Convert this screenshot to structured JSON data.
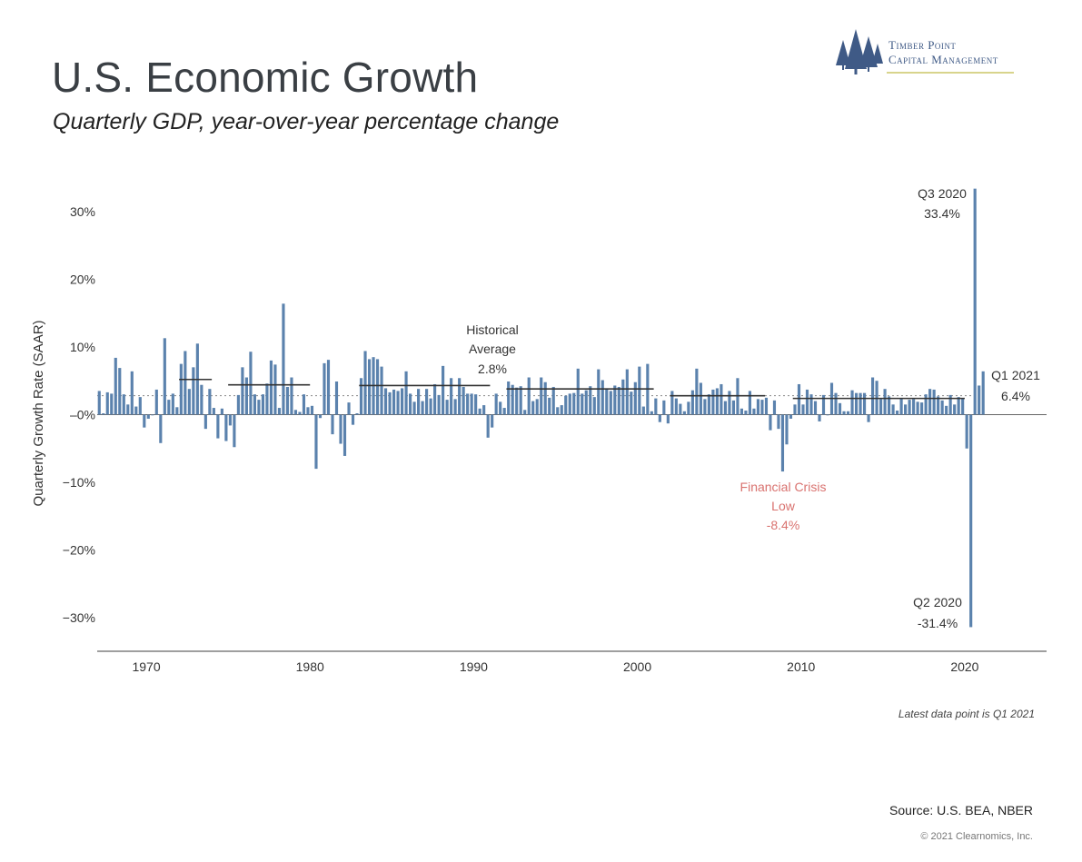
{
  "header": {
    "title": "U.S. Economic Growth",
    "subtitle": "Quarterly GDP, year-over-year percentage change"
  },
  "logo": {
    "line1": "Timber Point",
    "line2": "Capital Management",
    "icon": "pine-trees-icon",
    "color": "#3f5a86"
  },
  "footer": {
    "note": "Latest data point is Q1 2021",
    "source": "Source: U.S. BEA, NBER",
    "copyright": "© 2021 Clearnomics, Inc."
  },
  "colors": {
    "bar": "#5b82ad",
    "crisis_text": "#d9726f",
    "avg_line": "#333333",
    "reference_line": "#888888"
  },
  "chart_data": {
    "type": "bar",
    "ylabel": "Quarterly Growth Rate (SAAR)",
    "xlabel": "",
    "x_start": "1967 Q1",
    "x_end": "2021 Q1",
    "xlim": [
      1967,
      2025
    ],
    "ylim": [
      -35,
      35
    ],
    "x_ticks": [
      "1970",
      "1980",
      "1990",
      "2000",
      "2010",
      "2020"
    ],
    "y_ticks": [
      "30%",
      "20%",
      "10%",
      "–0%",
      "−10%",
      "−20%",
      "−30%"
    ],
    "y_tick_values": [
      30,
      20,
      10,
      0,
      -10,
      -20,
      -30
    ],
    "historical_average": 2.8,
    "values": [
      3.5,
      0.2,
      3.3,
      3.1,
      8.4,
      6.9,
      3.0,
      1.5,
      6.4,
      1.2,
      2.6,
      -1.9,
      -0.6,
      0.0,
      3.7,
      -4.2,
      11.3,
      2.2,
      3.1,
      1.1,
      7.5,
      9.4,
      3.8,
      7.0,
      10.5,
      4.4,
      -2.1,
      3.8,
      1.0,
      -3.5,
      0.9,
      -3.9,
      -1.6,
      -4.8,
      2.9,
      7.0,
      5.5,
      9.3,
      3.0,
      2.2,
      3.0,
      4.6,
      8.0,
      7.4,
      1.0,
      16.4,
      4.1,
      5.5,
      0.7,
      0.4,
      3.0,
      1.1,
      1.3,
      -8.0,
      -0.5,
      7.6,
      8.1,
      -2.9,
      4.9,
      -4.3,
      -6.1,
      1.8,
      -1.5,
      0.2,
      5.4,
      9.4,
      8.2,
      8.5,
      8.2,
      7.1,
      3.9,
      3.3,
      3.7,
      3.5,
      3.9,
      6.4,
      3.1,
      1.9,
      3.8,
      2.0,
      3.8,
      2.4,
      4.5,
      2.9,
      7.2,
      2.2,
      5.4,
      2.3,
      5.4,
      4.1,
      3.1,
      3.1,
      3.0,
      0.9,
      1.4,
      -3.4,
      -1.9,
      3.1,
      1.9,
      1.0,
      4.9,
      4.4,
      4.0,
      4.2,
      0.7,
      5.5,
      2.0,
      2.3,
      5.5,
      4.8,
      2.5,
      4.1,
      1.1,
      1.4,
      2.8,
      3.1,
      3.2,
      6.8,
      3.1,
      3.6,
      4.2,
      2.6,
      6.7,
      5.1,
      3.9,
      3.5,
      4.3,
      4.1,
      5.2,
      6.7,
      3.4,
      4.8,
      7.1,
      1.2,
      7.5,
      0.5,
      2.4,
      -1.1,
      2.1,
      -1.3,
      3.5,
      2.4,
      1.6,
      0.5,
      1.9,
      3.6,
      6.8,
      4.7,
      2.3,
      3.0,
      3.7,
      3.9,
      4.5,
      2.0,
      3.5,
      2.1,
      5.4,
      0.9,
      0.6,
      3.5,
      0.9,
      2.3,
      2.2,
      2.5,
      -2.3,
      2.1,
      -2.1,
      -8.4,
      -4.4,
      -0.6,
      1.5,
      4.5,
      1.5,
      3.7,
      3.0,
      2.0,
      -1.0,
      2.9,
      -0.1,
      4.7,
      3.2,
      1.7,
      0.5,
      0.5,
      3.6,
      3.2,
      3.2,
      3.2,
      -1.1,
      5.5,
      5.0,
      2.3,
      3.8,
      2.7,
      1.5,
      0.6,
      2.4,
      1.5,
      2.2,
      2.3,
      1.9,
      1.8,
      3.0,
      3.8,
      3.7,
      2.7,
      2.1,
      1.3,
      2.9,
      1.5,
      2.6,
      2.4,
      -5.0,
      -31.4,
      33.4,
      4.3,
      6.4
    ],
    "annotations": {
      "historical": [
        "Historical",
        "Average",
        "2.8%"
      ],
      "crisis": [
        "Financial Crisis",
        "Low",
        "-8.4%"
      ],
      "q3_2020": [
        "Q3 2020",
        "33.4%"
      ],
      "q2_2020": [
        "Q2 2020",
        "-31.4%"
      ],
      "q1_2021": [
        "Q1 2021",
        "6.4%"
      ]
    },
    "decade_averages": [
      {
        "from": 1972.0,
        "to": 1974.0,
        "value": 5.2
      },
      {
        "from": 1975.0,
        "to": 1980.0,
        "value": 4.4
      },
      {
        "from": 1983.0,
        "to": 1991.0,
        "value": 4.3
      },
      {
        "from": 1992.0,
        "to": 2001.0,
        "value": 3.8
      },
      {
        "from": 2002.0,
        "to": 2007.8,
        "value": 2.8
      },
      {
        "from": 2009.5,
        "to": 2020.0,
        "value": 2.4
      }
    ],
    "grid": false,
    "legend": "none"
  }
}
